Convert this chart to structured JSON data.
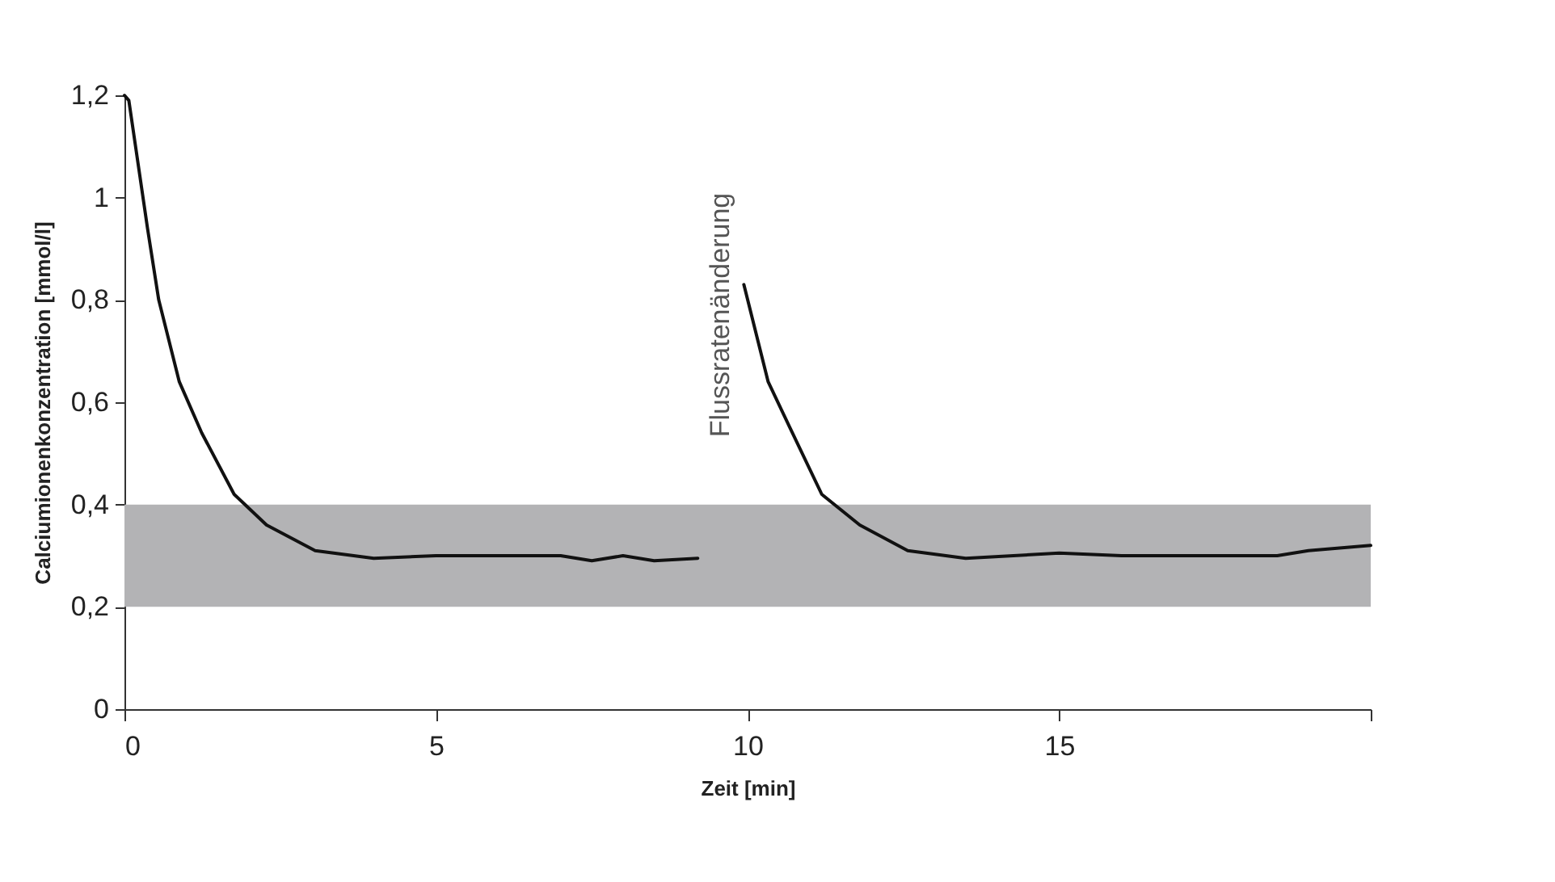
{
  "chart_data": {
    "type": "line",
    "xlabel": "Zeit [min]",
    "ylabel": "Calciumionenkonzentration [mmol/l]",
    "xlim": [
      0,
      20
    ],
    "xticks": [
      0,
      5,
      10,
      15,
      {
        "value": 20,
        "label": null
      }
    ],
    "ylim": [
      0,
      1.2
    ],
    "yticks": [
      0,
      {
        "value": 0.2,
        "label": "0,2"
      },
      {
        "value": 0.4,
        "label": "0,4"
      },
      {
        "value": 0.6,
        "label": "0,6"
      },
      {
        "value": 0.8,
        "label": "0,8"
      },
      1,
      {
        "value": 1.2,
        "label": "1,2"
      }
    ],
    "series": [
      {
        "color": "#111111",
        "x": [
          0,
          0.07,
          0.37,
          0.55,
          0.88,
          1.24,
          1.76,
          2.28,
          3.06,
          4,
          5,
          6,
          7,
          7.5,
          8,
          8.5,
          9.2
        ],
        "values": [
          1.2,
          1.19,
          0.94,
          0.8,
          0.64,
          0.54,
          0.42,
          0.36,
          0.31,
          0.295,
          0.3,
          0.3,
          0.3,
          0.29,
          0.3,
          0.29,
          0.295
        ]
      },
      {
        "color": "#111111",
        "x": [
          9.94,
          10.33,
          10.68,
          11.19,
          11.8,
          12.57,
          13.5,
          15,
          16,
          17,
          18.5,
          19,
          20
        ],
        "values": [
          0.83,
          0.64,
          0.55,
          0.42,
          0.36,
          0.31,
          0.295,
          0.305,
          0.3,
          0.3,
          0.3,
          0.31,
          0.32
        ]
      }
    ],
    "bands": [
      {
        "axis": "y",
        "from": 0.2,
        "to": 0.4,
        "color": "#b3b3b5"
      }
    ],
    "annotations": [
      "Flussratenänderung"
    ],
    "grid": false
  }
}
